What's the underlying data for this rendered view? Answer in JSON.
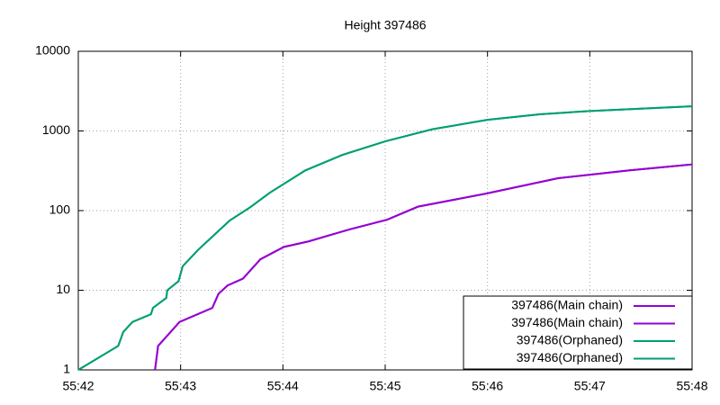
{
  "chart_data": {
    "type": "line",
    "title": "Height 397486",
    "log_y": true,
    "grid": true,
    "legend_position": "bottom-right",
    "xlim": [
      42,
      48
    ],
    "xticks": [
      {
        "value": 42,
        "label": "55:42"
      },
      {
        "value": 43,
        "label": "55:43"
      },
      {
        "value": 44,
        "label": "55:44"
      },
      {
        "value": 45,
        "label": "55:45"
      },
      {
        "value": 46,
        "label": "55:46"
      },
      {
        "value": 47,
        "label": "55:47"
      },
      {
        "value": 48,
        "label": "55:48"
      }
    ],
    "ylim": [
      1,
      10000
    ],
    "yticks": [
      1,
      10,
      100,
      1000,
      10000
    ],
    "series": [
      {
        "name": "397486(Main chain)",
        "color": "#9400d3",
        "x": [
          42.75,
          42.78,
          42.99,
          43.31,
          43.37,
          43.46,
          43.61,
          43.78,
          44.01,
          44.25,
          44.65,
          45.02,
          45.32,
          45.98,
          46.69,
          47.39,
          48.0
        ],
        "values": [
          1,
          2,
          4,
          6,
          9,
          11.5,
          14,
          24.5,
          35,
          41,
          58,
          77,
          112,
          163,
          255,
          320,
          380
        ]
      },
      {
        "name": "397486(Main chain)",
        "color": "#9400d3",
        "x": [
          42.75,
          42.78,
          42.99,
          43.31,
          43.37,
          43.46,
          43.61,
          43.78,
          44.01,
          44.25,
          44.65,
          45.02,
          45.32,
          45.98,
          46.69,
          47.39,
          48.0
        ],
        "values": [
          1,
          2,
          4,
          6,
          9,
          11.5,
          14,
          24.5,
          35,
          41,
          58,
          77,
          112,
          163,
          255,
          320,
          380
        ]
      },
      {
        "name": "397486(Orphaned)",
        "color": "#009e73",
        "x": [
          42.0,
          42.39,
          42.44,
          42.53,
          42.71,
          42.73,
          42.86,
          42.87,
          42.98,
          43.02,
          43.17,
          43.26,
          43.48,
          43.68,
          43.87,
          44.22,
          44.58,
          45.0,
          45.46,
          46.0,
          46.51,
          47.0,
          48.0
        ],
        "values": [
          1,
          2,
          3,
          4,
          5,
          6,
          8,
          10,
          13,
          20,
          32,
          41,
          75,
          110,
          167,
          320,
          500,
          740,
          1050,
          1380,
          1620,
          1780,
          2040
        ]
      },
      {
        "name": "397486(Orphaned)",
        "color": "#009e73",
        "x": [
          42.0,
          42.39,
          42.44,
          42.53,
          42.71,
          42.73,
          42.86,
          42.87,
          42.98,
          43.02,
          43.17,
          43.26,
          43.48,
          43.68,
          43.87,
          44.22,
          44.58,
          45.0,
          45.46,
          46.0,
          46.51,
          47.0,
          48.0
        ],
        "values": [
          1,
          2,
          3,
          4,
          5,
          6,
          8,
          10,
          13,
          20,
          32,
          41,
          75,
          110,
          167,
          320,
          500,
          740,
          1050,
          1380,
          1620,
          1780,
          2040
        ]
      }
    ]
  }
}
